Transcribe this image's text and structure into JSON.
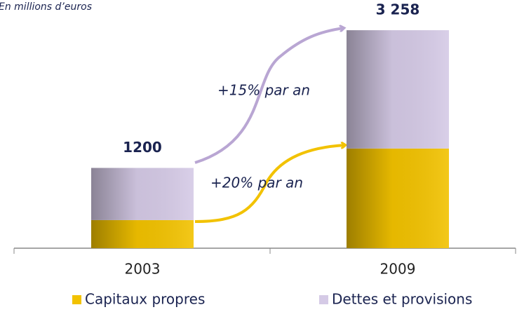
{
  "chart_data": {
    "type": "stacked-bar",
    "subtitle": "En millions d’euros",
    "categories": [
      "2003",
      "2009"
    ],
    "series": [
      {
        "name": "Capitaux propres",
        "color": "#f2c200",
        "values": [
          420,
          1490
        ]
      },
      {
        "name": "Dettes et provisions",
        "color": "#d5cae6",
        "values": [
          780,
          1768
        ]
      }
    ],
    "totals": [
      1200,
      3258
    ],
    "total_labels": [
      "1200",
      "3 258"
    ],
    "annotations": [
      "+15% par an",
      "+20% par an"
    ],
    "ylim": [
      0,
      3500
    ]
  }
}
